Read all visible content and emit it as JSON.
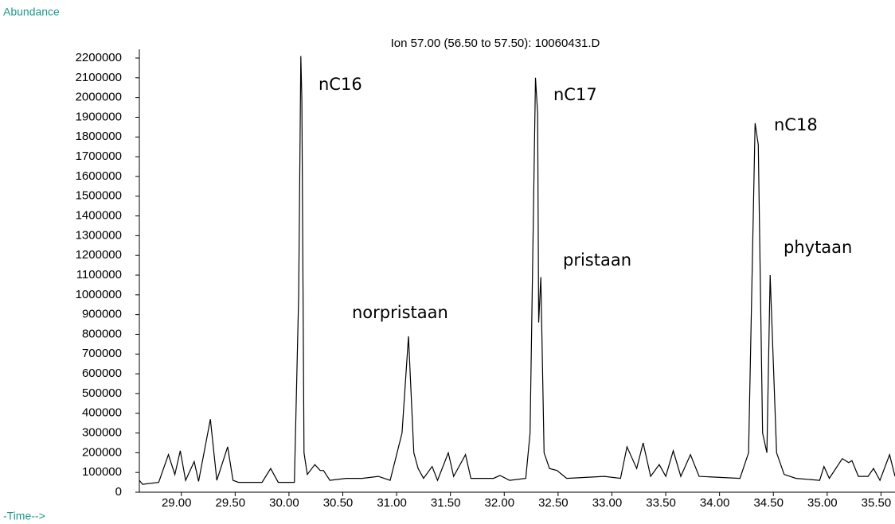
{
  "chart_data": {
    "type": "line",
    "y_label": "Abundance",
    "title": "Ion  57.00 (56.50 to 57.50): 10060431.D",
    "x_label": "-Time-->",
    "color": "#000000",
    "annotations": [
      "nC16",
      "nC17",
      "nC18",
      "norpristaan",
      "pristaan",
      "phytaan"
    ],
    "x": [
      28.61,
      28.64,
      28.79,
      28.88,
      28.94,
      28.99,
      29.04,
      29.12,
      29.16,
      29.27,
      29.33,
      29.43,
      29.48,
      29.53,
      29.75,
      29.83,
      29.9,
      30.05,
      30.09,
      30.11,
      30.12,
      30.14,
      30.17,
      30.24,
      30.29,
      30.32,
      30.38,
      30.53,
      30.68,
      30.83,
      30.94,
      31.05,
      31.11,
      31.16,
      31.2,
      31.25,
      31.33,
      31.38,
      31.48,
      31.53,
      31.64,
      31.69,
      31.9,
      31.96,
      32.05,
      32.2,
      32.24,
      32.29,
      32.31,
      32.32,
      32.34,
      32.37,
      32.42,
      32.49,
      32.58,
      32.93,
      33.08,
      33.14,
      33.23,
      33.29,
      33.36,
      33.44,
      33.5,
      33.57,
      33.64,
      33.73,
      33.81,
      34.19,
      34.27,
      34.33,
      34.36,
      34.4,
      34.44,
      34.47,
      34.53,
      34.6,
      34.71,
      34.93,
      34.97,
      35.02,
      35.14,
      35.2,
      35.23,
      35.29,
      35.38,
      35.43,
      35.49,
      35.58,
      35.63
    ],
    "values": [
      60000,
      40000,
      50000,
      190000,
      90000,
      210000,
      60000,
      155000,
      55000,
      370000,
      60000,
      230000,
      60000,
      50000,
      50000,
      120000,
      50000,
      50000,
      1000000,
      2210000,
      1990000,
      200000,
      90000,
      140000,
      110000,
      110000,
      60000,
      70000,
      70000,
      80000,
      60000,
      300000,
      790000,
      200000,
      120000,
      70000,
      130000,
      60000,
      200000,
      80000,
      190000,
      70000,
      70000,
      85000,
      60000,
      70000,
      300000,
      2100000,
      1920000,
      860000,
      1090000,
      200000,
      120000,
      110000,
      70000,
      80000,
      70000,
      230000,
      120000,
      250000,
      80000,
      140000,
      80000,
      210000,
      80000,
      190000,
      80000,
      70000,
      200000,
      1870000,
      1760000,
      300000,
      200000,
      1100000,
      200000,
      90000,
      70000,
      60000,
      130000,
      70000,
      170000,
      150000,
      160000,
      80000,
      80000,
      120000,
      60000,
      190000,
      80000
    ],
    "xlim": [
      28.61,
      35.63
    ],
    "ylim": [
      0,
      2200000
    ],
    "yticks": [
      0,
      100000,
      200000,
      300000,
      400000,
      500000,
      600000,
      700000,
      800000,
      900000,
      1000000,
      1100000,
      1200000,
      1300000,
      1400000,
      1500000,
      1600000,
      1700000,
      1800000,
      1900000,
      2000000,
      2100000,
      2200000
    ],
    "xticks": [
      {
        "value": 29.0,
        "label": "29.00"
      },
      {
        "value": 29.5,
        "label": "29.50"
      },
      {
        "value": 30.0,
        "label": "30.00"
      },
      {
        "value": 30.5,
        "label": "30.50"
      },
      {
        "value": 31.0,
        "label": "31.00"
      },
      {
        "value": 31.5,
        "label": "31.50"
      },
      {
        "value": 32.0,
        "label": "32.00"
      },
      {
        "value": 32.5,
        "label": "32.50"
      },
      {
        "value": 33.0,
        "label": "33.00"
      },
      {
        "value": 33.5,
        "label": "33.50"
      },
      {
        "value": 34.0,
        "label": "34.00"
      },
      {
        "value": 34.5,
        "label": "34.50"
      },
      {
        "value": 35.0,
        "label": "35.00"
      },
      {
        "value": 35.5,
        "label": "35.50"
      }
    ]
  }
}
